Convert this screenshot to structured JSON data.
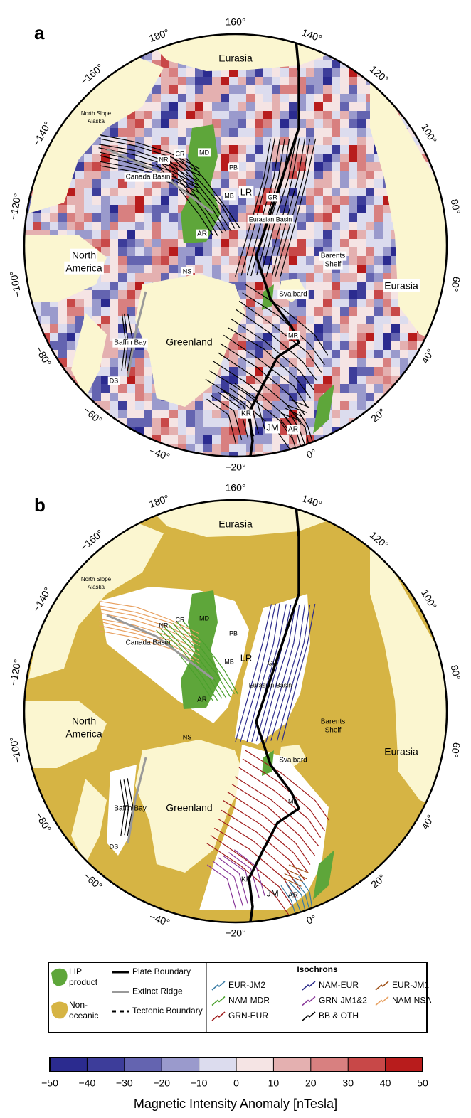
{
  "panels": [
    {
      "label": "a",
      "lon_labels": [
        "160°",
        "140°",
        "120°",
        "100°",
        "80°",
        "60°",
        "40°",
        "20°",
        "0°",
        "−20°",
        "−40°",
        "−60°",
        "−80°",
        "−100°",
        "−120°",
        "−140°",
        "−160°",
        "180°"
      ],
      "places": [
        "Eurasia",
        "North Slope",
        "Alaska",
        "NR",
        "CR",
        "MD",
        "PB",
        "Canada Basin",
        "LR",
        "GR",
        "MB",
        "AR",
        "Eurasian Basin",
        "Barents",
        "Shelf",
        "North",
        "America",
        "NS",
        "Eurasia",
        "Svalbard",
        "Baffin Bay",
        "Greenland",
        "MR",
        "DS",
        "KR",
        "JM",
        "AR"
      ]
    },
    {
      "label": "b",
      "lon_labels": [
        "160°",
        "140°",
        "120°",
        "100°",
        "80°",
        "60°",
        "40°",
        "20°",
        "0°",
        "−20°",
        "−40°",
        "−60°",
        "−80°",
        "−100°",
        "−120°",
        "−140°",
        "−160°",
        "180°"
      ],
      "places": [
        "Eurasia",
        "North Slope",
        "Alaska",
        "NR",
        "CR",
        "MD",
        "PB",
        "Canada Basin",
        "LR",
        "GR",
        "MB",
        "AR",
        "Eurasian Basin",
        "Barents",
        "Shelf",
        "North",
        "America",
        "NS",
        "Eurasia",
        "Svalbard",
        "Baffin Bay",
        "Greenland",
        "MR",
        "DS",
        "KR",
        "JM",
        "AR"
      ]
    }
  ],
  "legend": {
    "lip": {
      "label": [
        "LIP",
        "product"
      ],
      "color": "#5ea63a"
    },
    "non_oceanic": {
      "label": [
        "Non-",
        "oceanic"
      ],
      "color": "#d6b444"
    },
    "lines": [
      {
        "label": "Plate Boundary",
        "color": "#000000"
      },
      {
        "label": "Extinct Ridge",
        "color": "#999999"
      },
      {
        "label": "Tectonic Boundary",
        "color": "#000000"
      }
    ],
    "isochrons": {
      "title": "Isochrons",
      "series": [
        {
          "name": "EUR-JM2",
          "color": "#3a7ca5"
        },
        {
          "name": "NAM-MDR",
          "color": "#4aa02c"
        },
        {
          "name": "GRN-EUR",
          "color": "#a01c1c"
        },
        {
          "name": "NAM-EUR",
          "color": "#2b2b8a"
        },
        {
          "name": "GRN-JM1&2",
          "color": "#8a3a9a"
        },
        {
          "name": "BB & OTH",
          "color": "#000000"
        },
        {
          "name": "EUR-JM1",
          "color": "#a0521a"
        },
        {
          "name": "NAM-NSA",
          "color": "#e8a060"
        }
      ]
    }
  },
  "colorbar": {
    "title": "Magnetic Intensity Anomaly [nTesla]",
    "lim": [
      -50,
      50
    ],
    "ticks": [
      {
        "value": -50,
        "label": "−50"
      },
      {
        "value": -40,
        "label": "−40"
      },
      {
        "value": -30,
        "label": "−30"
      },
      {
        "value": -20,
        "label": "−20"
      },
      {
        "value": -10,
        "label": "−10"
      },
      0,
      10,
      20,
      30,
      40,
      50
    ],
    "colors": [
      "#2b2b8f",
      "#3d3d9a",
      "#6464b0",
      "#9a9acc",
      "#dcdcee",
      "#f5e4e4",
      "#e4b0b0",
      "#d88080",
      "#c84848",
      "#b81c1c"
    ]
  }
}
